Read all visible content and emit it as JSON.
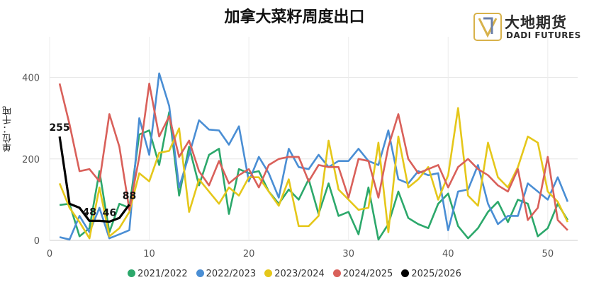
{
  "title": "加拿大菜籽周度出口",
  "logo": {
    "cn": "大地期货",
    "en": "DADI FUTURES"
  },
  "chart_data": {
    "type": "line",
    "title": "加拿大菜籽周度出口",
    "ylabel": "单位：千吨",
    "xlabel": "",
    "xlim": [
      0,
      53
    ],
    "ylim": [
      0,
      500
    ],
    "xticks": [
      0,
      10,
      20,
      30,
      40,
      50
    ],
    "yticks": [
      0,
      200,
      400
    ],
    "grid": true,
    "legend_position": "bottom",
    "series": [
      {
        "name": "2021/2022",
        "color": "#2ca86b",
        "x": [
          1,
          2,
          3,
          4,
          5,
          6,
          7,
          8,
          9,
          10,
          11,
          12,
          13,
          14,
          15,
          16,
          17,
          18,
          19,
          20,
          21,
          22,
          23,
          24,
          25,
          26,
          27,
          28,
          29,
          30,
          31,
          32,
          33,
          34,
          35,
          36,
          37,
          38,
          39,
          40,
          41,
          42,
          43,
          44,
          45,
          46,
          47,
          48,
          49,
          50,
          51,
          52
        ],
        "y": [
          87,
          90,
          10,
          30,
          170,
          20,
          90,
          80,
          260,
          270,
          185,
          315,
          110,
          230,
          135,
          210,
          225,
          65,
          175,
          165,
          170,
          120,
          90,
          125,
          100,
          150,
          65,
          140,
          60,
          70,
          15,
          130,
          2,
          40,
          120,
          55,
          40,
          30,
          90,
          115,
          35,
          5,
          30,
          70,
          95,
          45,
          100,
          90,
          10,
          30,
          90,
          50
        ]
      },
      {
        "name": "2022/2023",
        "color": "#4a8ed4",
        "x": [
          1,
          2,
          3,
          4,
          5,
          6,
          7,
          8,
          9,
          10,
          11,
          12,
          13,
          14,
          15,
          16,
          17,
          18,
          19,
          20,
          21,
          22,
          23,
          24,
          25,
          26,
          27,
          28,
          29,
          30,
          31,
          32,
          33,
          34,
          35,
          36,
          37,
          38,
          39,
          40,
          41,
          42,
          43,
          44,
          45,
          46,
          47,
          48,
          49,
          50,
          51,
          52
        ],
        "y": [
          8,
          2,
          60,
          20,
          80,
          5,
          15,
          25,
          300,
          210,
          410,
          330,
          130,
          210,
          295,
          272,
          270,
          235,
          280,
          145,
          205,
          165,
          105,
          225,
          180,
          175,
          210,
          180,
          195,
          195,
          225,
          195,
          185,
          270,
          150,
          140,
          170,
          160,
          165,
          25,
          120,
          125,
          185,
          90,
          40,
          60,
          60,
          140,
          120,
          100,
          155,
          95
        ]
      },
      {
        "name": "2023/2024",
        "color": "#e5c71a",
        "x": [
          1,
          2,
          3,
          4,
          5,
          6,
          7,
          8,
          9,
          10,
          11,
          12,
          13,
          14,
          15,
          16,
          17,
          18,
          19,
          20,
          21,
          22,
          23,
          24,
          25,
          26,
          27,
          28,
          29,
          30,
          31,
          32,
          33,
          34,
          35,
          36,
          37,
          38,
          39,
          40,
          41,
          42,
          43,
          44,
          45,
          46,
          47,
          48,
          49,
          50,
          51,
          52
        ],
        "y": [
          140,
          80,
          45,
          5,
          130,
          10,
          30,
          70,
          165,
          145,
          215,
          220,
          275,
          70,
          150,
          120,
          90,
          130,
          110,
          155,
          155,
          120,
          85,
          150,
          35,
          35,
          60,
          245,
          125,
          100,
          75,
          80,
          240,
          20,
          255,
          130,
          150,
          180,
          100,
          160,
          325,
          110,
          85,
          240,
          155,
          130,
          180,
          255,
          240,
          120,
          95,
          45
        ]
      },
      {
        "name": "2024/2025",
        "color": "#d9605a",
        "x": [
          1,
          2,
          3,
          4,
          5,
          6,
          7,
          8,
          9,
          10,
          11,
          12,
          13,
          14,
          15,
          16,
          17,
          18,
          19,
          20,
          21,
          22,
          23,
          24,
          25,
          26,
          27,
          28,
          29,
          30,
          31,
          32,
          33,
          34,
          35,
          36,
          37,
          38,
          39,
          40,
          41,
          42,
          43,
          44,
          45,
          46,
          47,
          48,
          49,
          50,
          51,
          52
        ],
        "y": [
          385,
          285,
          170,
          175,
          145,
          310,
          230,
          75,
          205,
          385,
          255,
          305,
          205,
          245,
          170,
          135,
          195,
          140,
          160,
          175,
          130,
          185,
          200,
          205,
          205,
          145,
          185,
          180,
          180,
          105,
          200,
          195,
          105,
          230,
          310,
          200,
          165,
          175,
          185,
          130,
          180,
          200,
          175,
          160,
          135,
          120,
          175,
          50,
          80,
          205,
          50,
          25
        ]
      },
      {
        "name": "2025/2026",
        "color": "#000000",
        "x": [
          1,
          2,
          3,
          4,
          5,
          6,
          7,
          8
        ],
        "y": [
          255,
          90,
          80,
          48,
          48,
          46,
          55,
          88
        ],
        "labels": [
          {
            "x": 1,
            "text": "255"
          },
          {
            "x": 4,
            "text": "48"
          },
          {
            "x": 6,
            "text": "46"
          },
          {
            "x": 8,
            "text": "88"
          }
        ]
      }
    ]
  }
}
